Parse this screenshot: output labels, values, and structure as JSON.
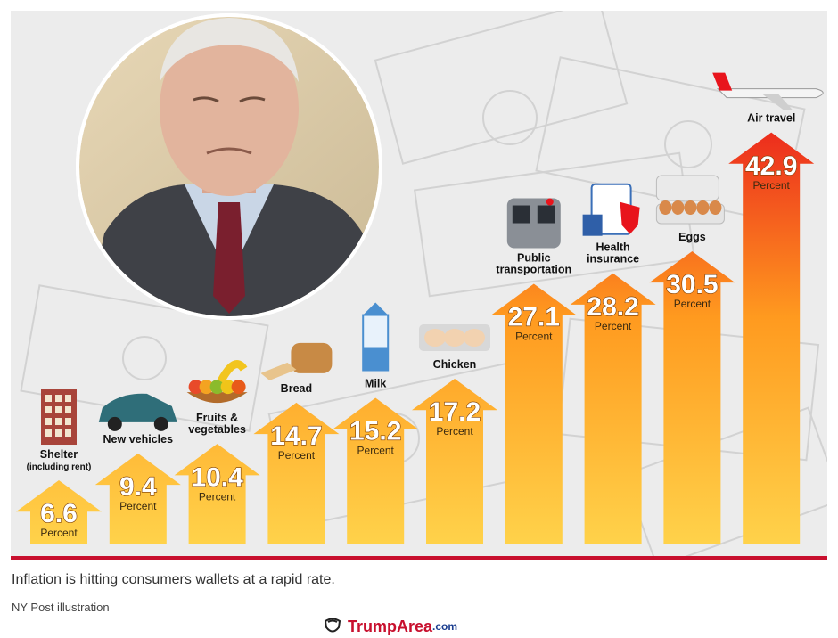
{
  "chart_data": {
    "type": "bar",
    "title": "",
    "xlabel": "",
    "ylabel": "",
    "unit_label": "Percent",
    "ylim": [
      0,
      45
    ],
    "categories": [
      {
        "lines": [
          "Shelter",
          "(including rent)"
        ]
      },
      {
        "lines": [
          "New vehicles"
        ]
      },
      {
        "lines": [
          "Fruits &",
          "vegetables"
        ]
      },
      {
        "lines": [
          "Bread"
        ]
      },
      {
        "lines": [
          "Milk"
        ]
      },
      {
        "lines": [
          "Chicken"
        ]
      },
      {
        "lines": [
          "Public",
          "transportation"
        ]
      },
      {
        "lines": [
          "Health",
          "insurance"
        ]
      },
      {
        "lines": [
          "Eggs"
        ]
      },
      {
        "lines": [
          "Air travel"
        ]
      }
    ],
    "values": [
      6.6,
      9.4,
      10.4,
      14.7,
      15.2,
      17.2,
      27.1,
      28.2,
      30.5,
      42.9
    ],
    "value_labels": [
      "6.6",
      "9.4",
      "10.4",
      "14.7",
      "15.2",
      "17.2",
      "27.1",
      "28.2",
      "30.5",
      "42.9"
    ],
    "icons": [
      "building-icon",
      "car-icon",
      "fruit-bowl-icon",
      "bread-icon",
      "milk-carton-icon",
      "chicken-tray-icon",
      "subway-train-icon",
      "health-insurance-icon",
      "egg-carton-icon",
      "airplane-icon"
    ],
    "colors": {
      "arrow_low": "#ffd24a",
      "arrow_mid": "#ff9a1f",
      "arrow_high": "#e8141c"
    }
  },
  "caption": "Inflation is hitting consumers wallets at a rapid rate.",
  "credit": "NY Post illustration",
  "watermark": {
    "name": "TrumpArea",
    "suffix": ".com"
  },
  "colors": {
    "rule": "#c8102e"
  }
}
